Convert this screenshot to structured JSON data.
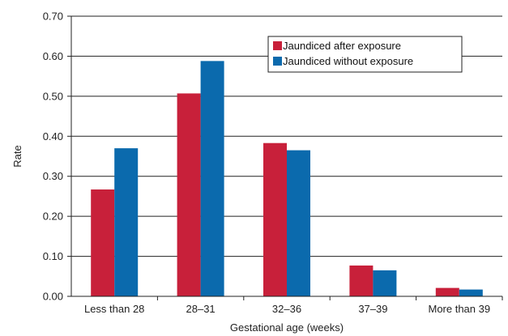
{
  "chart_data": {
    "type": "bar",
    "title": "",
    "xlabel": "Gestational age (weeks)",
    "ylabel": "Rate",
    "ylim": [
      0,
      0.7
    ],
    "yticks": [
      "0.00",
      "0.10",
      "0.20",
      "0.30",
      "0.40",
      "0.50",
      "0.60",
      "0.70"
    ],
    "grid": true,
    "legend_position": "top-right",
    "categories": [
      "Less than 28",
      "28–31",
      "32–36",
      "37–39",
      "More than 39"
    ],
    "series": [
      {
        "name": "Jaundiced after exposure",
        "color": "#c8203a",
        "values": [
          0.267,
          0.507,
          0.383,
          0.077,
          0.021
        ]
      },
      {
        "name": "Jaundiced without exposure",
        "color": "#0b6aad",
        "values": [
          0.37,
          0.588,
          0.365,
          0.065,
          0.017
        ]
      }
    ]
  }
}
